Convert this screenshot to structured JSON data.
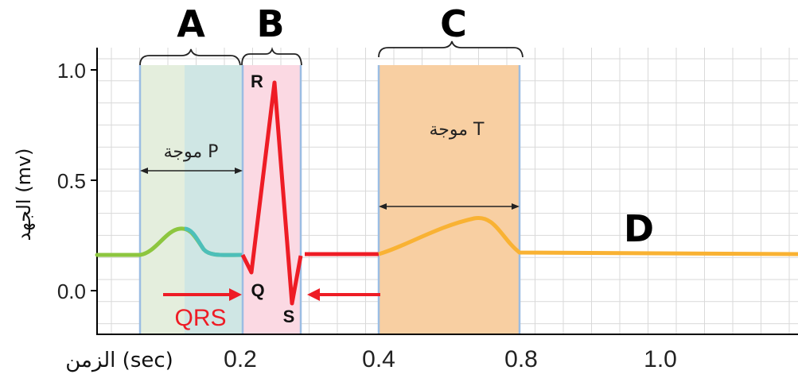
{
  "diagram": {
    "segment_labels": {
      "A": "A",
      "B": "B",
      "C": "C",
      "D": "D"
    },
    "wave_labels": {
      "p_wave": "موجة P",
      "t_wave": "موجة T",
      "qrs": "QRS",
      "r": "R",
      "q": "Q",
      "s": "S"
    },
    "y_axis": {
      "label": "الجهد (mv)",
      "ticks": [
        "1.0",
        "0.5",
        "0.0"
      ]
    },
    "x_axis": {
      "label": "الزمن (sec)",
      "ticks": [
        "0.2",
        "0.4",
        "0.8",
        "1.0"
      ]
    },
    "colors": {
      "p_region_green": "#e4eedd",
      "p_region_teal": "#cfe6e4",
      "qrs_region": "#fbd9e3",
      "t_region": "#f8cfa2",
      "baseline_green": "#8dc63f",
      "p_wave_teal": "#4dbfb9",
      "qrs_red": "#ee1c25",
      "t_wave_orange": "#f9b233",
      "grid": "#d9d9d9"
    }
  }
}
